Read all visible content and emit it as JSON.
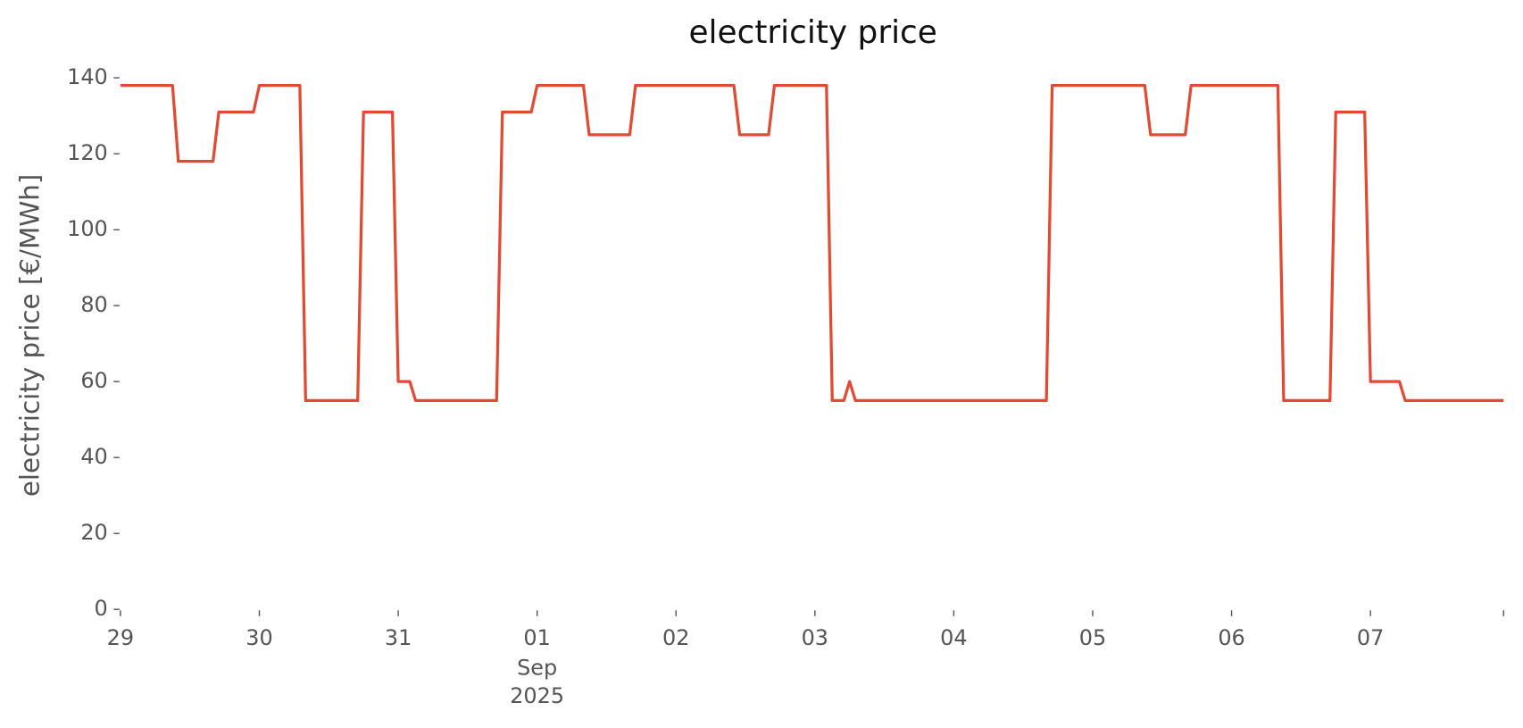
{
  "chart_data": {
    "type": "line",
    "title": "electricity price",
    "ylabel": "electricity price [€/MWh]",
    "x": [
      0,
      9,
      10,
      16,
      17,
      23,
      24,
      31,
      32,
      41,
      42,
      47,
      48,
      50,
      51,
      65,
      66,
      71,
      72,
      80,
      81,
      88,
      89,
      106,
      107,
      112,
      113,
      122,
      123,
      125,
      126,
      127,
      160,
      161,
      177,
      178,
      184,
      185,
      200,
      201,
      209,
      210,
      215,
      216,
      221,
      222,
      239
    ],
    "values": [
      138,
      138,
      118,
      118,
      131,
      131,
      138,
      138,
      55,
      55,
      131,
      131,
      60,
      60,
      55,
      55,
      131,
      131,
      138,
      138,
      125,
      125,
      138,
      138,
      125,
      125,
      138,
      138,
      55,
      55,
      60,
      55,
      55,
      138,
      138,
      125,
      125,
      138,
      138,
      55,
      55,
      131,
      131,
      60,
      60,
      55,
      55
    ],
    "color": "#e24a33",
    "xlim": [
      0,
      239
    ],
    "xticks": [
      {
        "value": 0,
        "label": "29"
      },
      {
        "value": 24,
        "label": "30"
      },
      {
        "value": 48,
        "label": "31"
      },
      {
        "value": 72,
        "label": "01",
        "sublabels": [
          "Sep",
          "2025"
        ]
      },
      {
        "value": 96,
        "label": "02"
      },
      {
        "value": 120,
        "label": "03"
      },
      {
        "value": 144,
        "label": "04"
      },
      {
        "value": 168,
        "label": "05"
      },
      {
        "value": 192,
        "label": "06"
      },
      {
        "value": 216,
        "label": "07"
      }
    ],
    "ylim": [
      0,
      140
    ],
    "yticks": [
      0,
      20,
      40,
      60,
      80,
      100,
      120,
      140
    ]
  }
}
